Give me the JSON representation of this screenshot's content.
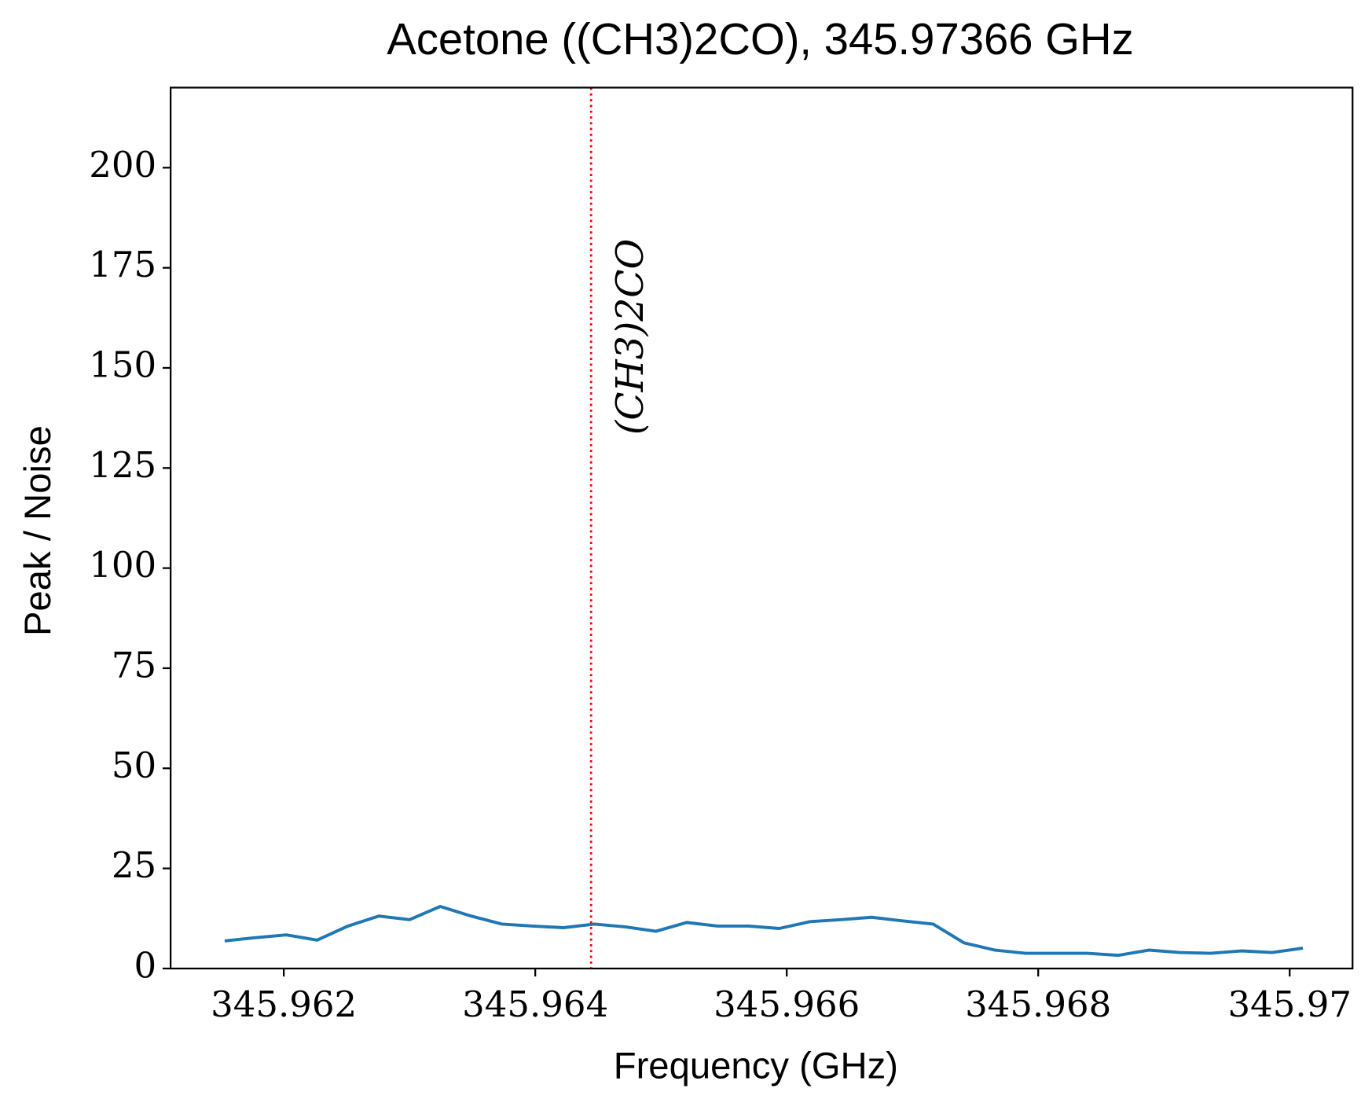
{
  "chart_data": {
    "type": "line",
    "title": "Acetone ((CH3)2CO), 345.97366 GHz",
    "xlabel": "Frequency (GHz)",
    "ylabel": "Peak / Noise",
    "x": [
      345.96153,
      345.961775,
      345.96202,
      345.962265,
      345.96251,
      345.962755,
      345.963,
      345.963245,
      345.96349,
      345.963735,
      345.96398,
      345.964225,
      345.96447,
      345.964715,
      345.96496,
      345.965205,
      345.96545,
      345.965695,
      345.96594,
      345.966185,
      345.96643,
      345.966675,
      345.96692,
      345.967165,
      345.96741,
      345.967655,
      345.9679,
      345.968145,
      345.96839,
      345.968635,
      345.96888,
      345.969125,
      345.96937,
      345.969615,
      345.96986,
      345.970105
    ],
    "series": [
      {
        "color": "#1f77b4",
        "values": [
          6.9,
          7.7,
          8.4,
          7.1,
          10.6,
          13.1,
          12.2,
          15.5,
          13.1,
          11.1,
          10.6,
          10.2,
          11.1,
          10.4,
          9.3,
          11.5,
          10.6,
          10.6,
          10.0,
          11.7,
          12.2,
          12.8,
          11.9,
          11.1,
          6.4,
          4.6,
          3.8,
          3.8,
          3.8,
          3.3,
          4.6,
          4.0,
          3.8,
          4.4,
          4.0,
          5.1
        ]
      }
    ],
    "annotation": {
      "text": "(CH3)2CO",
      "x": 345.964444,
      "color": "#ff0000"
    },
    "xlim": [
      345.9611,
      345.9705
    ],
    "ylim": [
      0,
      220
    ],
    "xticks": [
      345.962,
      345.964,
      345.966,
      345.968,
      345.97
    ],
    "yticks": [
      0,
      25,
      50,
      75,
      100,
      125,
      150,
      175,
      200
    ]
  }
}
